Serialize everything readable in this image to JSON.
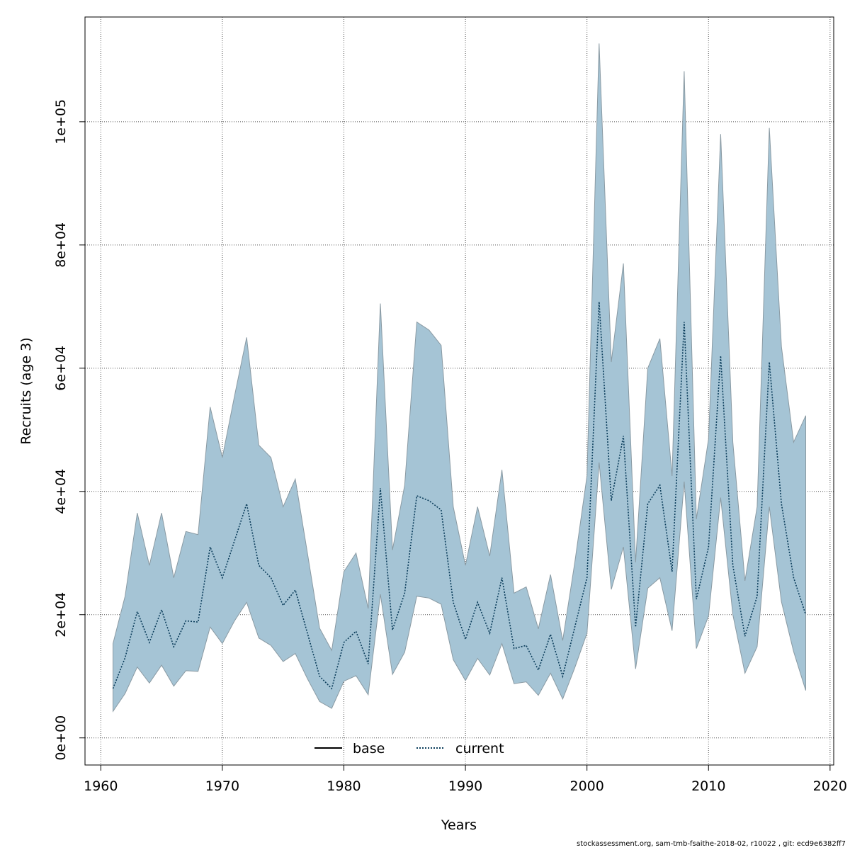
{
  "chart_data": {
    "type": "area",
    "xlabel": "Years",
    "ylabel": "Recruits (age 3)",
    "xlim": [
      1958.7,
      2020.3
    ],
    "ylim": [
      -4400,
      117000
    ],
    "xticks": [
      1960,
      1970,
      1980,
      1990,
      2000,
      2010,
      2020
    ],
    "xtick_labels": [
      "1960",
      "1970",
      "1980",
      "1990",
      "2000",
      "2010",
      "2020"
    ],
    "yticks": [
      0,
      20000,
      40000,
      60000,
      80000,
      100000
    ],
    "ytick_labels": [
      "0e+00",
      "2e+04",
      "4e+04",
      "6e+04",
      "8e+04",
      "1e+05"
    ],
    "grid": true,
    "legend_position": "bottom-center",
    "colors": {
      "band_fill": "#a5c4d5",
      "band_stroke": "#8a9aa3",
      "current_line": "#0b3d5b",
      "base_line": "#000000",
      "grid": "#555555"
    },
    "series": [
      {
        "name": "current",
        "style": "dotted",
        "x": [
          1961,
          1962,
          1963,
          1964,
          1965,
          1966,
          1967,
          1968,
          1969,
          1970,
          1971,
          1972,
          1973,
          1974,
          1975,
          1976,
          1977,
          1978,
          1979,
          1980,
          1981,
          1982,
          1983,
          1984,
          1985,
          1986,
          1987,
          1988,
          1989,
          1990,
          1991,
          1992,
          1993,
          1994,
          1995,
          1996,
          1997,
          1998,
          1999,
          2000,
          2001,
          2002,
          2003,
          2004,
          2005,
          2006,
          2007,
          2008,
          2009,
          2010,
          2011,
          2012,
          2013,
          2014,
          2015,
          2016,
          2017,
          2018
        ],
        "values": [
          8000,
          13000,
          20500,
          15500,
          20800,
          14800,
          19000,
          18800,
          31000,
          26000,
          32000,
          38000,
          28000,
          26000,
          21500,
          24000,
          17000,
          10000,
          8000,
          15500,
          17300,
          12000,
          40500,
          17500,
          23500,
          39300,
          38500,
          37000,
          22000,
          16000,
          22000,
          17000,
          26000,
          14500,
          15000,
          11000,
          16800,
          10000,
          18000,
          26000,
          70800,
          38500,
          49000,
          18000,
          38000,
          41000,
          27000,
          67500,
          22500,
          31000,
          62000,
          28000,
          16500,
          23000,
          61000,
          38000,
          26000,
          20000
        ]
      },
      {
        "name": "band",
        "upper": [
          15300,
          23000,
          36500,
          28000,
          36500,
          26000,
          33500,
          33000,
          53700,
          45500,
          55500,
          65000,
          47500,
          45500,
          37500,
          42000,
          30000,
          17800,
          14200,
          27000,
          30000,
          21000,
          70500,
          30500,
          41000,
          67500,
          66200,
          63700,
          37500,
          28000,
          37500,
          29500,
          43500,
          23500,
          24500,
          17700,
          26500,
          15800,
          28500,
          42500,
          112700,
          61000,
          77000,
          28500,
          60000,
          64800,
          42500,
          108200,
          35500,
          48500,
          98000,
          48000,
          25500,
          37500,
          99000,
          63500,
          48000,
          52300
        ],
        "lower": [
          4300,
          7200,
          11500,
          8900,
          11800,
          8400,
          10900,
          10800,
          18000,
          15300,
          19000,
          22000,
          16200,
          15000,
          12400,
          13700,
          9600,
          5900,
          4800,
          9200,
          10100,
          7000,
          23300,
          10300,
          13900,
          23000,
          22700,
          21700,
          12700,
          9300,
          12900,
          10200,
          15300,
          8800,
          9100,
          6900,
          10500,
          6300,
          11400,
          17000,
          44700,
          24100,
          31000,
          11200,
          24300,
          26000,
          17400,
          41600,
          14500,
          19800,
          39000,
          20000,
          10500,
          14800,
          37500,
          22100,
          14000,
          7700
        ]
      }
    ],
    "legend": [
      {
        "label": "base",
        "style": "solid"
      },
      {
        "label": "current",
        "style": "dotted"
      }
    ]
  },
  "footer": "stockassessment.org, sam-tmb-fsaithe-2018-02, r10022 , git: ecd9e6382ff7"
}
